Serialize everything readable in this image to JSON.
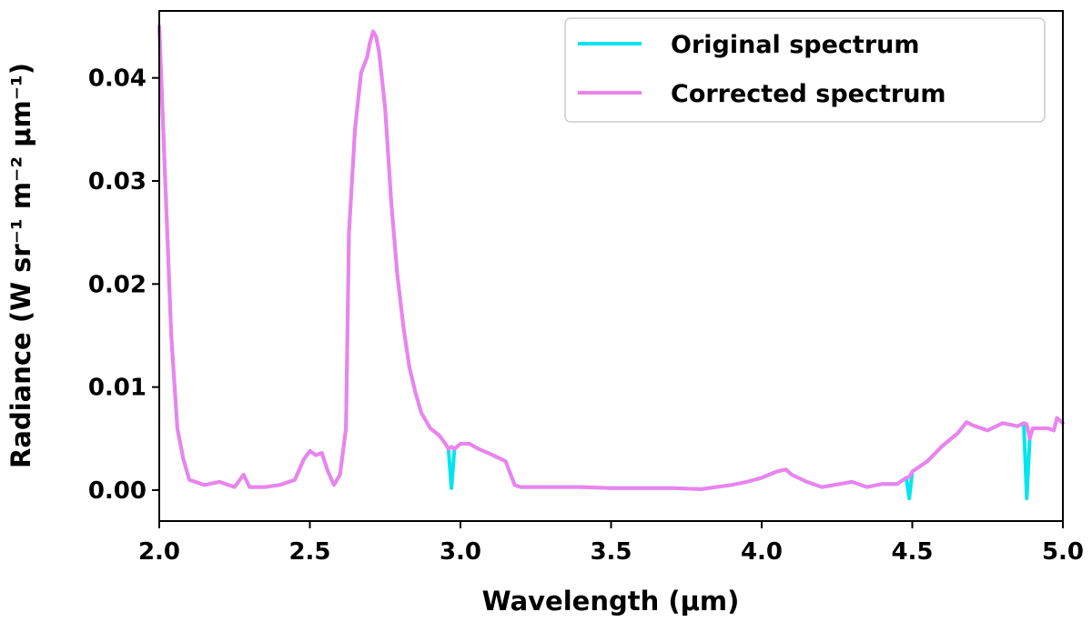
{
  "chart_data": {
    "type": "line",
    "xlabel": "Wavelength (μm)",
    "ylabel": "Radiance (W sr⁻¹ m⁻² μm⁻¹)",
    "xlim": [
      2.0,
      5.0
    ],
    "ylim": [
      -0.003,
      0.0465
    ],
    "xticks": [
      2.0,
      2.5,
      3.0,
      3.5,
      4.0,
      4.5,
      5.0
    ],
    "xtick_labels": [
      "2.0",
      "2.5",
      "3.0",
      "3.5",
      "4.0",
      "4.5",
      "5.0"
    ],
    "yticks": [
      0.0,
      0.01,
      0.02,
      0.03,
      0.04
    ],
    "ytick_labels": [
      "0.00",
      "0.01",
      "0.02",
      "0.03",
      "0.04"
    ],
    "grid": false,
    "legend_position": "top-right",
    "series": [
      {
        "name": "Original spectrum",
        "color": "#00e5ee",
        "x": [
          2.0,
          2.02,
          2.04,
          2.06,
          2.08,
          2.1,
          2.15,
          2.2,
          2.25,
          2.28,
          2.3,
          2.35,
          2.4,
          2.45,
          2.48,
          2.5,
          2.52,
          2.54,
          2.56,
          2.58,
          2.6,
          2.62,
          2.63,
          2.65,
          2.67,
          2.69,
          2.7,
          2.71,
          2.72,
          2.73,
          2.75,
          2.77,
          2.79,
          2.81,
          2.83,
          2.85,
          2.87,
          2.9,
          2.93,
          2.95,
          2.96,
          2.97,
          2.98,
          3.0,
          3.03,
          3.06,
          3.1,
          3.15,
          3.18,
          3.2,
          3.25,
          3.3,
          3.4,
          3.5,
          3.6,
          3.7,
          3.8,
          3.9,
          3.95,
          4.0,
          4.05,
          4.08,
          4.1,
          4.15,
          4.2,
          4.3,
          4.35,
          4.4,
          4.45,
          4.48,
          4.49,
          4.5,
          4.55,
          4.6,
          4.65,
          4.68,
          4.7,
          4.75,
          4.8,
          4.85,
          4.87,
          4.88,
          4.89,
          4.9,
          4.95,
          4.97,
          4.98,
          5.0
        ],
        "y": [
          0.045,
          0.03,
          0.015,
          0.006,
          0.003,
          0.001,
          0.0005,
          0.0008,
          0.0003,
          0.0015,
          0.0003,
          0.0003,
          0.0005,
          0.001,
          0.003,
          0.0038,
          0.0034,
          0.0036,
          0.0018,
          0.0005,
          0.0015,
          0.006,
          0.025,
          0.035,
          0.0405,
          0.042,
          0.0435,
          0.0445,
          0.044,
          0.0425,
          0.037,
          0.028,
          0.021,
          0.016,
          0.012,
          0.0095,
          0.0075,
          0.006,
          0.0053,
          0.0045,
          0.004,
          0.0002,
          0.004,
          0.0045,
          0.0045,
          0.004,
          0.0035,
          0.0028,
          0.0005,
          0.0003,
          0.0003,
          0.0003,
          0.0003,
          0.0002,
          0.0002,
          0.0002,
          0.0001,
          0.0005,
          0.0008,
          0.0012,
          0.0018,
          0.002,
          0.0015,
          0.0008,
          0.0003,
          0.0008,
          0.0003,
          0.0006,
          0.0006,
          0.0012,
          -0.0008,
          0.0018,
          0.0028,
          0.0043,
          0.0055,
          0.0066,
          0.0063,
          0.0058,
          0.0065,
          0.0062,
          0.0065,
          -0.0008,
          0.005,
          0.006,
          0.006,
          0.0058,
          0.007,
          0.0065
        ]
      },
      {
        "name": "Corrected spectrum",
        "color": "#ee82ee",
        "x": [
          2.0,
          2.02,
          2.04,
          2.06,
          2.08,
          2.1,
          2.15,
          2.2,
          2.25,
          2.28,
          2.3,
          2.35,
          2.4,
          2.45,
          2.48,
          2.5,
          2.52,
          2.54,
          2.56,
          2.58,
          2.6,
          2.62,
          2.63,
          2.65,
          2.67,
          2.69,
          2.7,
          2.71,
          2.72,
          2.73,
          2.75,
          2.77,
          2.79,
          2.81,
          2.83,
          2.85,
          2.87,
          2.9,
          2.93,
          2.95,
          2.96,
          2.97,
          2.98,
          3.0,
          3.03,
          3.06,
          3.1,
          3.15,
          3.18,
          3.2,
          3.25,
          3.3,
          3.4,
          3.5,
          3.6,
          3.7,
          3.8,
          3.9,
          3.95,
          4.0,
          4.05,
          4.08,
          4.1,
          4.15,
          4.2,
          4.3,
          4.35,
          4.4,
          4.45,
          4.48,
          4.49,
          4.5,
          4.55,
          4.6,
          4.65,
          4.68,
          4.7,
          4.75,
          4.8,
          4.85,
          4.87,
          4.88,
          4.89,
          4.9,
          4.95,
          4.97,
          4.98,
          5.0
        ],
        "y": [
          0.045,
          0.03,
          0.015,
          0.006,
          0.003,
          0.001,
          0.0005,
          0.0008,
          0.0003,
          0.0015,
          0.0003,
          0.0003,
          0.0005,
          0.001,
          0.003,
          0.0038,
          0.0034,
          0.0036,
          0.0018,
          0.0005,
          0.0015,
          0.006,
          0.025,
          0.035,
          0.0405,
          0.042,
          0.0435,
          0.0445,
          0.044,
          0.0425,
          0.037,
          0.028,
          0.021,
          0.016,
          0.012,
          0.0095,
          0.0075,
          0.006,
          0.0053,
          0.0045,
          0.004,
          0.0042,
          0.004,
          0.0045,
          0.0045,
          0.004,
          0.0035,
          0.0028,
          0.0005,
          0.0003,
          0.0003,
          0.0003,
          0.0003,
          0.0002,
          0.0002,
          0.0002,
          0.0001,
          0.0005,
          0.0008,
          0.0012,
          0.0018,
          0.002,
          0.0015,
          0.0008,
          0.0003,
          0.0008,
          0.0003,
          0.0006,
          0.0006,
          0.0012,
          0.0013,
          0.0018,
          0.0028,
          0.0043,
          0.0055,
          0.0066,
          0.0063,
          0.0058,
          0.0065,
          0.0062,
          0.0065,
          0.0064,
          0.005,
          0.006,
          0.006,
          0.0058,
          0.007,
          0.0065
        ]
      }
    ]
  }
}
